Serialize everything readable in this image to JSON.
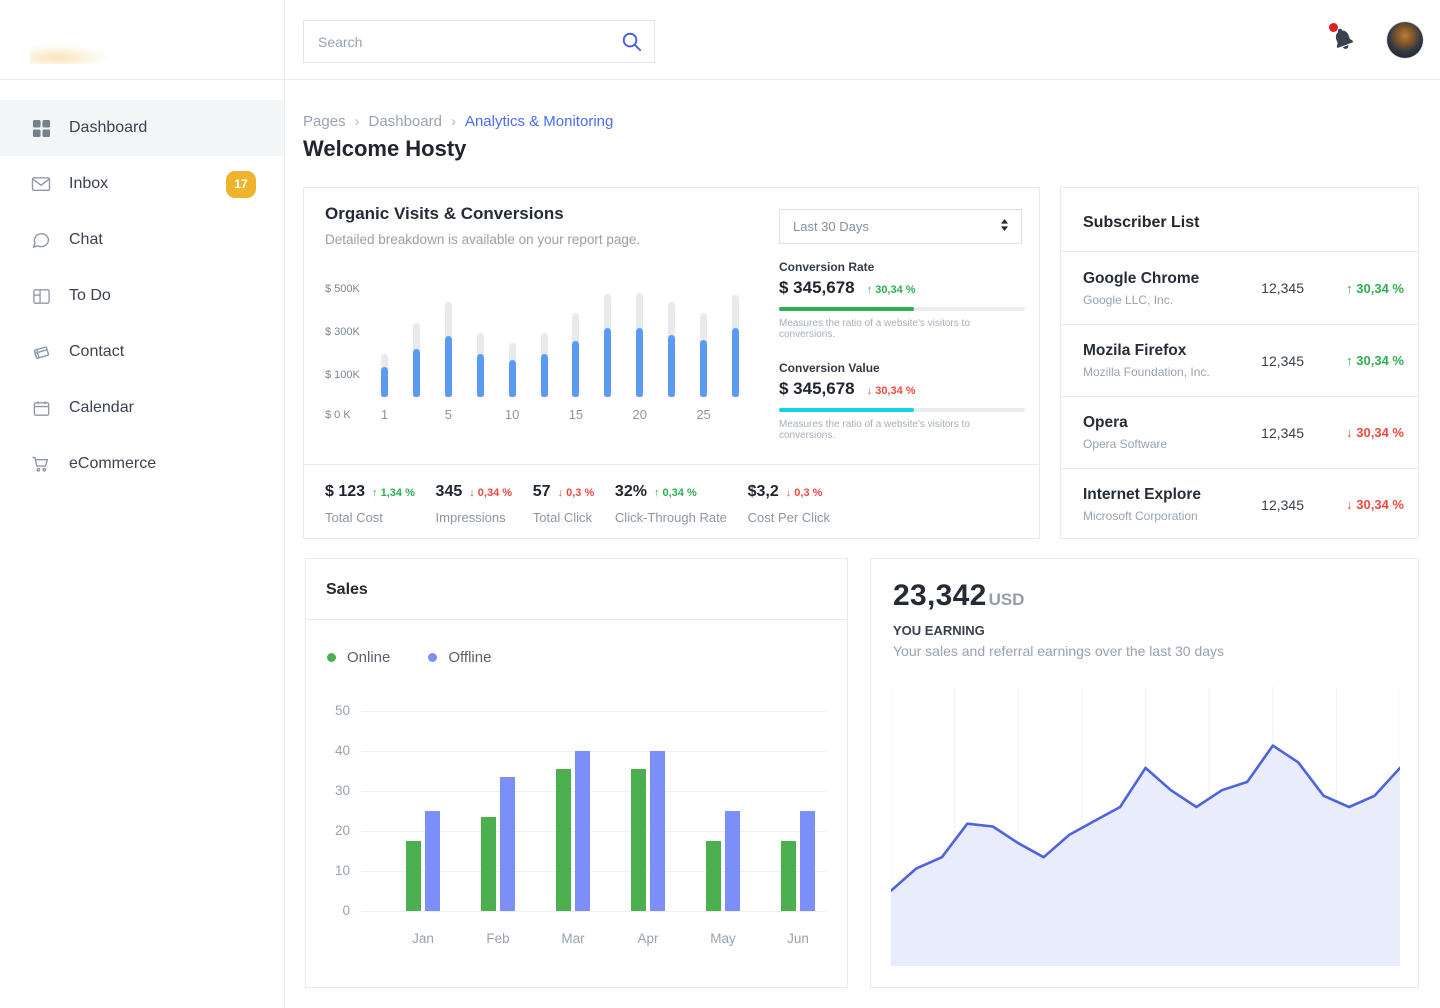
{
  "topbar": {
    "search_placeholder": "Search"
  },
  "sidebar": {
    "items": [
      {
        "label": "Dashboard",
        "icon": "grid",
        "active": true
      },
      {
        "label": "Inbox",
        "icon": "envelope",
        "badge": "17"
      },
      {
        "label": "Chat",
        "icon": "chat"
      },
      {
        "label": "To Do",
        "icon": "todo"
      },
      {
        "label": "Contact",
        "icon": "contact"
      },
      {
        "label": "Calendar",
        "icon": "calendar"
      },
      {
        "label": "eCommerce",
        "icon": "cart"
      }
    ]
  },
  "breadcrumb": {
    "items": [
      "Pages",
      "Dashboard",
      "Analytics & Monitoring"
    ]
  },
  "page_title": "Welcome Hosty",
  "colors": {
    "accent_blue": "#4a6cf7",
    "green": "#2eae52",
    "red": "#f0483e",
    "cyan": "#16d2e9",
    "badge_yellow": "#efb42e",
    "bar_blue": "#5b9bf5",
    "bar_gray": "#e8eaee",
    "sales_green": "#4caf50",
    "sales_blue": "#7c8ff8",
    "earn_line": "#4f63dd",
    "earn_fill": "#e8ecfb"
  },
  "organic": {
    "title": "Organic Visits & Conversions",
    "subtitle": "Detailed breakdown is available on your report page.",
    "period": "Last 30 Days",
    "metrics": [
      {
        "label": "Conversion Rate",
        "value": "$ 345,678",
        "delta": "30,34 %",
        "direction": "up",
        "bar_color": "#2eae52",
        "bar_pct": 55,
        "desc": "Measures the ratio of a website's visitors to conversions."
      },
      {
        "label": "Conversion Value",
        "value": "$ 345,678",
        "delta": "30,34 %",
        "direction": "down",
        "bar_color": "#16d2e9",
        "bar_pct": 55,
        "desc": "Measures the ratio of a website's visitors to conversions."
      }
    ],
    "stats": [
      {
        "value": "$ 123",
        "delta": "1,34 %",
        "direction": "up",
        "label": "Total Cost"
      },
      {
        "value": "345",
        "delta": "0,34 %",
        "direction": "down",
        "label": "Impressions"
      },
      {
        "value": "57",
        "delta": "0,3 %",
        "direction": "down",
        "label": "Total Click"
      },
      {
        "value": "32%",
        "delta": "0,34 %",
        "direction": "up",
        "label": "Click-Through Rate"
      },
      {
        "value": "$3,2",
        "delta": "0,3 %",
        "direction": "down",
        "label": "Cost Per Click"
      }
    ]
  },
  "subscribers": {
    "title": "Subscriber List",
    "rows": [
      {
        "name": "Google Chrome",
        "company": "Google LLC, Inc.",
        "count": "12,345",
        "delta": "30,34 %",
        "direction": "up"
      },
      {
        "name": "Mozila Firefox",
        "company": "Mozilla Foundation, Inc.",
        "count": "12,345",
        "delta": "30,34 %",
        "direction": "up"
      },
      {
        "name": "Opera",
        "company": "Opera Software",
        "count": "12,345",
        "delta": "30,34 %",
        "direction": "down"
      },
      {
        "name": "Internet Explore",
        "company": "Microsoft Corporation",
        "count": "12,345",
        "delta": "30,34 %",
        "direction": "down"
      }
    ]
  },
  "sales": {
    "title": "Sales"
  },
  "earning": {
    "amount": "23,342",
    "currency": "USD",
    "label": "YOU EARNING",
    "desc": "Your sales and referral earnings over the last 30 days"
  },
  "chart_data": [
    {
      "name": "organic_visits",
      "type": "bar",
      "title": "Organic Visits & Conversions",
      "y_ticks": [
        "$ 500K",
        "$ 300K",
        "$ 100K"
      ],
      "zero_tick": "$ 0 K",
      "x_labels": [
        "1",
        "",
        "5",
        "",
        "10",
        "",
        "15",
        "",
        "20",
        "",
        "25",
        ""
      ],
      "ylim": [
        0,
        520
      ],
      "unit": "K USD",
      "series": [
        {
          "name": "visits_total",
          "color": "#e8eaee",
          "values": [
            200,
            345,
            440,
            295,
            250,
            295,
            390,
            480,
            485,
            440,
            390,
            475
          ]
        },
        {
          "name": "conversions",
          "color": "#5b9bf5",
          "values": [
            140,
            225,
            285,
            200,
            170,
            200,
            260,
            320,
            320,
            290,
            265,
            320
          ]
        }
      ]
    },
    {
      "name": "sales",
      "type": "bar",
      "categories": [
        "Jan",
        "Feb",
        "Mar",
        "Apr",
        "May",
        "Jun"
      ],
      "y_ticks": [
        50,
        40,
        30,
        20,
        10,
        0
      ],
      "ylim": [
        0,
        50
      ],
      "legend_position": "top-left",
      "series": [
        {
          "name": "Online",
          "color": "#4caf50",
          "values": [
            17.5,
            23.5,
            35.5,
            35.5,
            17.5,
            17.5
          ]
        },
        {
          "name": "Offline",
          "color": "#7c8ff8",
          "values": [
            25,
            33.5,
            40,
            40,
            25,
            25
          ]
        }
      ]
    },
    {
      "name": "earnings",
      "type": "area",
      "line_color": "#4f63dd",
      "fill_color": "#e8ecfb",
      "ylim": [
        0,
        100
      ],
      "grid": "vertical",
      "values": [
        27,
        35,
        39,
        51,
        50,
        44,
        39,
        47,
        52,
        57,
        71,
        63,
        57,
        63,
        66,
        79,
        73,
        61,
        57,
        61,
        71
      ]
    }
  ]
}
